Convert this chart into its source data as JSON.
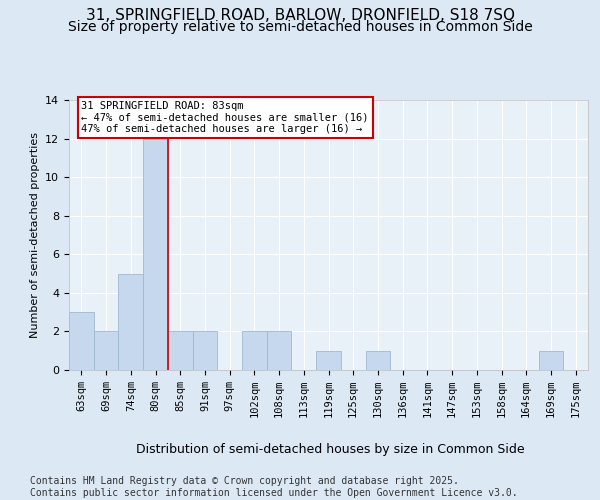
{
  "title_line1": "31, SPRINGFIELD ROAD, BARLOW, DRONFIELD, S18 7SQ",
  "title_line2": "Size of property relative to semi-detached houses in Common Side",
  "xlabel": "Distribution of semi-detached houses by size in Common Side",
  "ylabel": "Number of semi-detached properties",
  "categories": [
    "63sqm",
    "69sqm",
    "74sqm",
    "80sqm",
    "85sqm",
    "91sqm",
    "97sqm",
    "102sqm",
    "108sqm",
    "113sqm",
    "119sqm",
    "125sqm",
    "130sqm",
    "136sqm",
    "141sqm",
    "147sqm",
    "153sqm",
    "158sqm",
    "164sqm",
    "169sqm",
    "175sqm"
  ],
  "values": [
    3,
    2,
    5,
    12,
    2,
    2,
    0,
    2,
    2,
    0,
    1,
    0,
    1,
    0,
    0,
    0,
    0,
    0,
    0,
    1,
    0
  ],
  "bar_color": "#c5d8ed",
  "bar_edgecolor": "#a0b8d0",
  "redline_index": 3,
  "annotation_text": "31 SPRINGFIELD ROAD: 83sqm\n← 47% of semi-detached houses are smaller (16)\n47% of semi-detached houses are larger (16) →",
  "annotation_box_color": "#ffffff",
  "annotation_box_edgecolor": "#cc0000",
  "ylim": [
    0,
    14
  ],
  "yticks": [
    0,
    2,
    4,
    6,
    8,
    10,
    12,
    14
  ],
  "footer_text": "Contains HM Land Registry data © Crown copyright and database right 2025.\nContains public sector information licensed under the Open Government Licence v3.0.",
  "background_color": "#dce9f5",
  "plot_bg_color": "#e8f0f8",
  "grid_color": "#ffffff",
  "title_fontsize": 11,
  "subtitle_fontsize": 10,
  "tick_fontsize": 7.5,
  "label_fontsize": 9,
  "footer_fontsize": 7,
  "annot_fontsize": 7.5
}
